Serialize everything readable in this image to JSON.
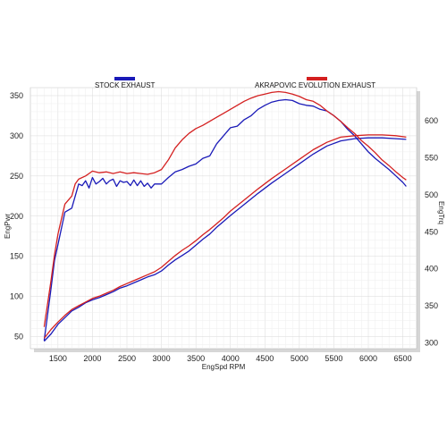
{
  "chart_data": {
    "type": "line",
    "xlabel": "EngSpd  RPM",
    "ylabel_left": "EngPwr",
    "ylabel_right": "EngTrq",
    "xlim": [
      1100,
      6700
    ],
    "ylim_left": [
      35,
      360
    ],
    "ylim_right": [
      292,
      645
    ],
    "x_ticks": [
      1500,
      2000,
      2500,
      3000,
      3500,
      4000,
      4500,
      5000,
      5500,
      6000,
      6500
    ],
    "y_left_ticks": [
      50,
      100,
      150,
      200,
      250,
      300,
      350
    ],
    "y_right_ticks": [
      300,
      350,
      400,
      450,
      500,
      550,
      600
    ],
    "grid": true,
    "legend_placement": "top",
    "series": [
      {
        "name": "STOCK EXHAUST",
        "color": "#1a1ab8",
        "power": {
          "x": [
            1300,
            1400,
            1450,
            1500,
            1600,
            1700,
            1800,
            1850,
            1900,
            1950,
            2000,
            2050,
            2100,
            2150,
            2200,
            2250,
            2300,
            2350,
            2400,
            2450,
            2500,
            2550,
            2600,
            2650,
            2700,
            2750,
            2800,
            2850,
            2900,
            3000,
            3100,
            3200,
            3300,
            3400,
            3500,
            3600,
            3700,
            3800,
            3900,
            4000,
            4100,
            4200,
            4300,
            4400,
            4500,
            4600,
            4700,
            4800,
            4900,
            5000,
            5100,
            5200,
            5300,
            5400,
            5500,
            5600,
            5700,
            5800,
            5900,
            6000,
            6100,
            6200,
            6300,
            6400,
            6500,
            6550
          ],
          "y": [
            45,
            110,
            145,
            165,
            205,
            210,
            240,
            238,
            244,
            235,
            248,
            240,
            243,
            247,
            240,
            244,
            246,
            237,
            244,
            242,
            243,
            238,
            245,
            238,
            244,
            237,
            241,
            235,
            240,
            240,
            248,
            255,
            258,
            262,
            265,
            272,
            275,
            290,
            300,
            310,
            312,
            320,
            325,
            333,
            338,
            342,
            344,
            345,
            344,
            340,
            338,
            337,
            333,
            331,
            325,
            318,
            308,
            300,
            290,
            280,
            272,
            265,
            258,
            250,
            242,
            237
          ]
        },
        "torque": {
          "x": [
            1300,
            1400,
            1500,
            1600,
            1700,
            1800,
            1900,
            2000,
            2100,
            2200,
            2300,
            2400,
            2500,
            2600,
            2700,
            2800,
            2900,
            3000,
            3100,
            3200,
            3300,
            3400,
            3500,
            3600,
            3700,
            3800,
            3900,
            4000,
            4200,
            4400,
            4600,
            4800,
            5000,
            5200,
            5400,
            5600,
            5800,
            6000,
            6200,
            6400,
            6550
          ],
          "y": [
            302,
            312,
            325,
            334,
            343,
            348,
            354,
            358,
            361,
            365,
            369,
            374,
            377,
            381,
            385,
            389,
            392,
            397,
            405,
            412,
            418,
            424,
            432,
            440,
            447,
            456,
            464,
            472,
            487,
            502,
            516,
            529,
            542,
            555,
            566,
            573,
            576,
            577,
            577,
            576,
            575
          ]
        }
      },
      {
        "name": "AKRAPOVIC EVOLUTION EXHAUST",
        "color": "#d42020",
        "power": {
          "x": [
            1300,
            1400,
            1450,
            1500,
            1600,
            1700,
            1750,
            1800,
            1900,
            1950,
            2000,
            2100,
            2200,
            2300,
            2400,
            2500,
            2600,
            2700,
            2800,
            2900,
            3000,
            3100,
            3200,
            3300,
            3400,
            3500,
            3600,
            3700,
            3800,
            3900,
            4000,
            4100,
            4200,
            4300,
            4400,
            4500,
            4600,
            4700,
            4800,
            4900,
            5000,
            5100,
            5200,
            5300,
            5400,
            5500,
            5600,
            5700,
            5800,
            5900,
            6000,
            6100,
            6200,
            6300,
            6400,
            6500,
            6550
          ],
          "y": [
            62,
            120,
            152,
            178,
            215,
            225,
            240,
            246,
            250,
            253,
            256,
            254,
            255,
            253,
            255,
            253,
            254,
            253,
            252,
            254,
            258,
            270,
            285,
            295,
            303,
            309,
            313,
            318,
            323,
            328,
            333,
            338,
            343,
            347,
            350,
            352,
            354,
            355,
            354,
            352,
            349,
            345,
            343,
            338,
            331,
            325,
            318,
            310,
            303,
            294,
            287,
            279,
            270,
            263,
            255,
            248,
            245
          ]
        },
        "torque": {
          "x": [
            1300,
            1400,
            1500,
            1600,
            1700,
            1800,
            1900,
            2000,
            2100,
            2200,
            2300,
            2400,
            2500,
            2600,
            2700,
            2800,
            2900,
            3000,
            3100,
            3200,
            3300,
            3400,
            3500,
            3600,
            3700,
            3800,
            3900,
            4000,
            4200,
            4400,
            4600,
            4800,
            5000,
            5200,
            5400,
            5600,
            5800,
            6000,
            6200,
            6400,
            6550
          ],
          "y": [
            306,
            318,
            328,
            337,
            345,
            350,
            355,
            360,
            363,
            367,
            371,
            376,
            380,
            384,
            388,
            392,
            396,
            402,
            410,
            418,
            425,
            431,
            438,
            446,
            453,
            461,
            469,
            478,
            493,
            508,
            522,
            535,
            548,
            561,
            571,
            578,
            580,
            581,
            581,
            580,
            578
          ]
        }
      }
    ]
  }
}
